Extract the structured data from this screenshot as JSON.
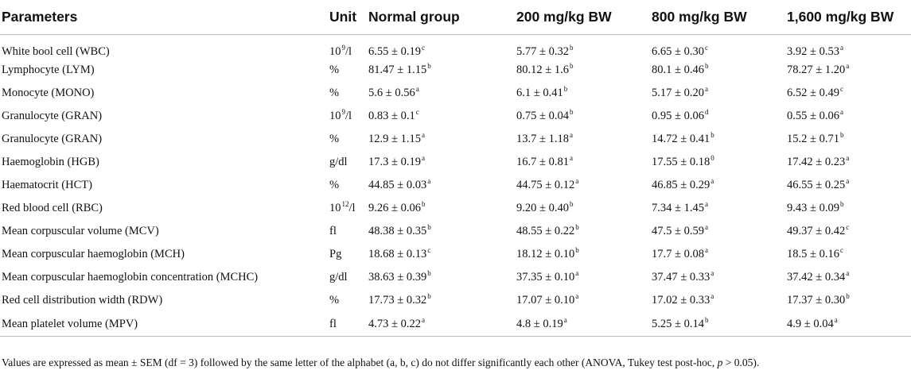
{
  "headers": [
    "Parameters",
    "Unit",
    "Normal group",
    "200 mg/kg BW",
    "800 mg/kg BW",
    "1,600 mg/kg BW"
  ],
  "rows": [
    {
      "param": "White bool cell (WBC)",
      "unit": "10",
      "unit_sup": "9",
      "unit_suffix": "/l",
      "v": [
        [
          "6.55 ± 0.19",
          "c"
        ],
        [
          "5.77 ± 0.32",
          "b"
        ],
        [
          "6.65 ± 0.30",
          "c"
        ],
        [
          "3.92 ± 0.53",
          "a"
        ]
      ]
    },
    {
      "param": "Lymphocyte (LYM)",
      "unit": "%",
      "unit_sup": "",
      "unit_suffix": "",
      "v": [
        [
          "81.47 ± 1.15",
          "b"
        ],
        [
          "80.12 ± 1.6",
          "b"
        ],
        [
          "80.1 ± 0.46",
          "b"
        ],
        [
          "78.27 ± 1.20",
          "a"
        ]
      ]
    },
    {
      "param": "Monocyte (MONO)",
      "unit": "%",
      "unit_sup": "",
      "unit_suffix": "",
      "v": [
        [
          "5.6 ± 0.56",
          "a"
        ],
        [
          "6.1 ± 0.41",
          "b"
        ],
        [
          "5.17 ± 0.20",
          "a"
        ],
        [
          "6.52 ± 0.49",
          "c"
        ]
      ]
    },
    {
      "param": "Granulocyte (GRAN)",
      "unit": "10",
      "unit_sup": "9",
      "unit_suffix": "/l",
      "v": [
        [
          "0.83 ± 0.1",
          "c"
        ],
        [
          "0.75 ± 0.04",
          "b"
        ],
        [
          "0.95 ± 0.06",
          "d"
        ],
        [
          "0.55 ± 0.06",
          "a"
        ]
      ]
    },
    {
      "param": "Granulocyte (GRAN)",
      "unit": "%",
      "unit_sup": "",
      "unit_suffix": "",
      "v": [
        [
          "12.9 ± 1.15",
          "a"
        ],
        [
          "13.7 ± 1.18",
          "a"
        ],
        [
          "14.72 ± 0.41",
          "b"
        ],
        [
          "15.2 ± 0.71",
          "b"
        ]
      ]
    },
    {
      "param": "Haemoglobin (HGB)",
      "unit": "g/dl",
      "unit_sup": "",
      "unit_suffix": "",
      "v": [
        [
          "17.3 ± 0.19",
          "a"
        ],
        [
          "16.7 ± 0.81",
          "a"
        ],
        [
          "17.55 ± 0.18",
          "0"
        ],
        [
          "17.42 ± 0.23",
          "a"
        ]
      ]
    },
    {
      "param": "Haematocrit (HCT)",
      "unit": "%",
      "unit_sup": "",
      "unit_suffix": "",
      "v": [
        [
          "44.85 ± 0.03",
          "a"
        ],
        [
          "44.75 ± 0.12",
          "a"
        ],
        [
          "46.85 ± 0.29",
          "a"
        ],
        [
          "46.55 ± 0.25",
          "a"
        ]
      ]
    },
    {
      "param": "Red blood cell (RBC)",
      "unit": "10",
      "unit_sup": "12",
      "unit_suffix": "/l",
      "v": [
        [
          "9.26 ± 0.06",
          "b"
        ],
        [
          "9.20 ± 0.40",
          "b"
        ],
        [
          "7.34 ± 1.45",
          "a"
        ],
        [
          "9.43 ± 0.09",
          "b"
        ]
      ]
    },
    {
      "param": "Mean corpuscular volume (MCV)",
      "unit": "fl",
      "unit_sup": "",
      "unit_suffix": "",
      "v": [
        [
          "48.38 ± 0.35",
          "b"
        ],
        [
          "48.55 ± 0.22",
          "b"
        ],
        [
          "47.5 ± 0.59",
          "a"
        ],
        [
          "49.37 ± 0.42",
          "c"
        ]
      ]
    },
    {
      "param": "Mean corpuscular haemoglobin (MCH)",
      "unit": "Pg",
      "unit_sup": "",
      "unit_suffix": "",
      "v": [
        [
          "18.68 ± 0.13",
          "c"
        ],
        [
          "18.12 ± 0.10",
          "b"
        ],
        [
          "17.7 ± 0.08",
          "a"
        ],
        [
          "18.5 ± 0.16",
          "c"
        ]
      ]
    },
    {
      "param": "Mean corpuscular haemoglobin concentration (MCHC)",
      "unit": "g/dl",
      "unit_sup": "",
      "unit_suffix": "",
      "v": [
        [
          "38.63 ± 0.39",
          "b"
        ],
        [
          "37.35 ± 0.10",
          "a"
        ],
        [
          "37.47 ± 0.33",
          "a"
        ],
        [
          "37.42 ± 0.34",
          "a"
        ]
      ]
    },
    {
      "param": "Red cell distribution width (RDW)",
      "unit": "%",
      "unit_sup": "",
      "unit_suffix": "",
      "v": [
        [
          "17.73 ± 0.32",
          "b"
        ],
        [
          "17.07 ± 0.10",
          "a"
        ],
        [
          "17.02 ± 0.33",
          "a"
        ],
        [
          "17.37 ± 0.30",
          "b"
        ]
      ]
    },
    {
      "param": "Mean platelet volume (MPV)",
      "unit": "fl",
      "unit_sup": "",
      "unit_suffix": "",
      "v": [
        [
          "4.73 ± 0.22",
          "a"
        ],
        [
          "4.8 ± 0.19",
          "a"
        ],
        [
          "5.25 ± 0.14",
          "b"
        ],
        [
          "4.9 ± 0.04",
          "a"
        ]
      ]
    }
  ],
  "footnote": {
    "pre": "Values are expressed as mean ± SEM (df = 3) followed by the same letter of the alphabet (a, b, c) do not differ significantly each other (ANOVA, Tukey test post-hoc, ",
    "p": "p",
    "post": " > 0.05)."
  }
}
